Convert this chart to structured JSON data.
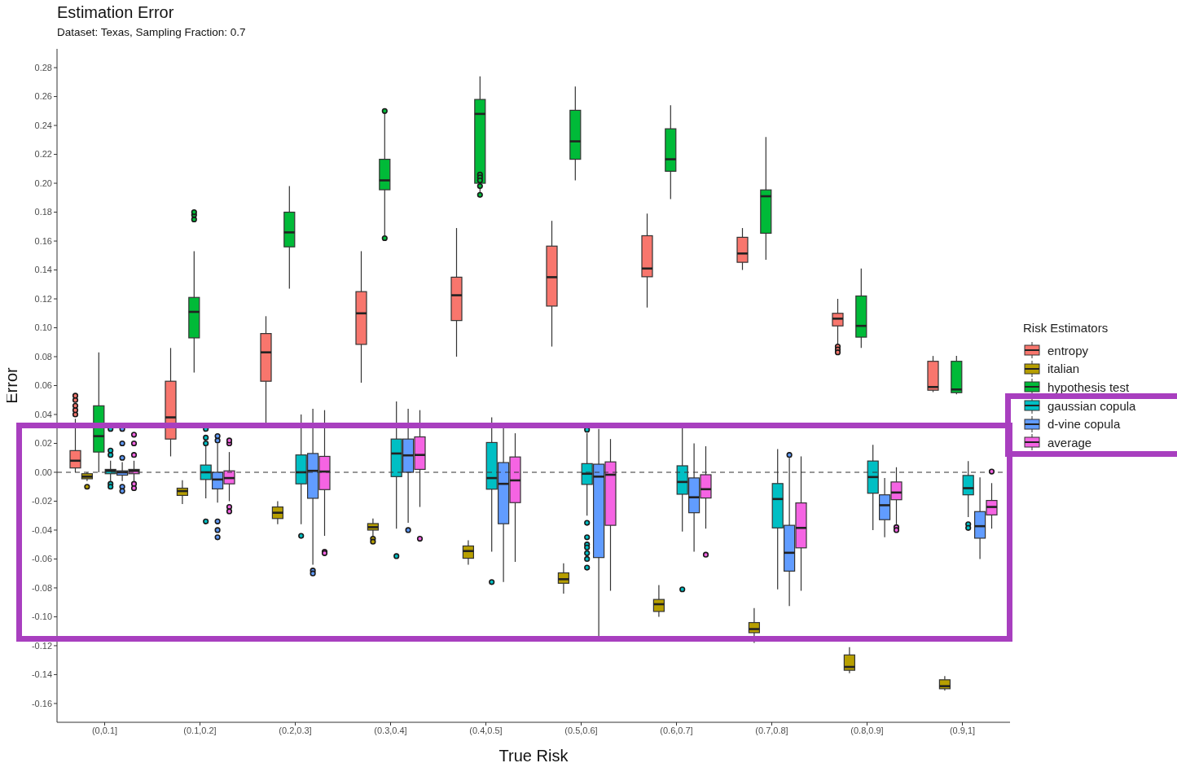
{
  "chart_data": {
    "type": "box",
    "title": "Estimation Error",
    "subtitle": "Dataset: Texas, Sampling Fraction: 0.7",
    "xlabel": "True Risk",
    "ylabel": "Error",
    "legend_title": "Risk Estimators",
    "legend": "right",
    "categories": [
      "(0,0.1]",
      "(0.1,0.2]",
      "(0.2,0.3]",
      "(0.3,0.4]",
      "(0.4,0.5]",
      "(0.5,0.6]",
      "(0.6,0.7]",
      "(0.7,0.8]",
      "(0.8,0.9]",
      "(0.9,1]"
    ],
    "ylim": [
      -0.173,
      0.293
    ],
    "yticks": [
      {
        "value": -0.16,
        "label": "-0.16"
      },
      {
        "value": -0.14,
        "label": "-0.14"
      },
      {
        "value": -0.12,
        "label": "-0.12"
      },
      {
        "value": -0.1,
        "label": "-0.10"
      },
      {
        "value": -0.08,
        "label": "-0.08"
      },
      {
        "value": -0.06,
        "label": "-0.06"
      },
      {
        "value": -0.04,
        "label": "-0.04"
      },
      {
        "value": -0.02,
        "label": "-0.02"
      },
      {
        "value": 0,
        "label": "0.00"
      },
      {
        "value": 0.02,
        "label": "0.02"
      },
      {
        "value": 0.04,
        "label": "0.04"
      },
      {
        "value": 0.06,
        "label": "0.06"
      },
      {
        "value": 0.08,
        "label": "0.08"
      },
      {
        "value": 0.1,
        "label": "0.10"
      },
      {
        "value": 0.12,
        "label": "0.12"
      },
      {
        "value": 0.14,
        "label": "0.14"
      },
      {
        "value": 0.16,
        "label": "0.16"
      },
      {
        "value": 0.18,
        "label": "0.18"
      },
      {
        "value": 0.2,
        "label": "0.20"
      },
      {
        "value": 0.22,
        "label": "0.22"
      },
      {
        "value": 0.24,
        "label": "0.24"
      },
      {
        "value": 0.26,
        "label": "0.26"
      },
      {
        "value": 0.28,
        "label": "0.28"
      }
    ],
    "ref_lines": [
      {
        "axis": "y",
        "value": 0,
        "line_style": "dashed"
      }
    ],
    "series": [
      {
        "name": "entropy",
        "color": "#f8766d",
        "boxes": [
          {
            "low": 0,
            "q1": 0.003,
            "median": 0.008,
            "q3": 0.015,
            "high": 0.037,
            "outliers": [
              0.04,
              0.043,
              0.046,
              0.05,
              0.053
            ]
          },
          {
            "low": 0.011,
            "q1": 0.023,
            "median": 0.038,
            "q3": 0.063,
            "high": 0.086
          },
          {
            "low": 0.031,
            "q1": 0.063,
            "median": 0.083,
            "q3": 0.096,
            "high": 0.108
          },
          {
            "low": 0.062,
            "q1": 0.0885,
            "median": 0.11,
            "q3": 0.125,
            "high": 0.153
          },
          {
            "low": 0.08,
            "q1": 0.105,
            "median": 0.1225,
            "q3": 0.135,
            "high": 0.169
          },
          {
            "low": 0.087,
            "q1": 0.115,
            "median": 0.135,
            "q3": 0.1565,
            "high": 0.174
          },
          {
            "low": 0.114,
            "q1": 0.1353,
            "median": 0.141,
            "q3": 0.1637,
            "high": 0.179
          },
          {
            "low": 0.14,
            "q1": 0.1453,
            "median": 0.1514,
            "q3": 0.1626,
            "high": 0.169
          },
          {
            "low": 0.0886,
            "q1": 0.1013,
            "median": 0.1063,
            "q3": 0.11,
            "high": 0.12,
            "outliers": [
              0.087,
              0.085,
              0.083
            ]
          },
          {
            "low": 0.0555,
            "q1": 0.0568,
            "median": 0.059,
            "q3": 0.0768,
            "high": 0.0805
          }
        ]
      },
      {
        "name": "italian",
        "color": "#b79f00",
        "boxes": [
          {
            "low": -0.006,
            "q1": -0.0045,
            "median": -0.003,
            "q3": -0.001,
            "high": 0,
            "outliers": [
              -0.01
            ]
          },
          {
            "low": -0.022,
            "q1": -0.016,
            "median": -0.013,
            "q3": -0.011,
            "high": -0.0055
          },
          {
            "low": -0.036,
            "q1": -0.032,
            "median": -0.028,
            "q3": -0.024,
            "high": -0.02
          },
          {
            "low": -0.045,
            "q1": -0.04,
            "median": -0.038,
            "q3": -0.0355,
            "high": -0.032,
            "outliers": [
              -0.046,
              -0.048
            ]
          },
          {
            "low": -0.064,
            "q1": -0.0595,
            "median": -0.0545,
            "q3": -0.051,
            "high": -0.047
          },
          {
            "low": -0.084,
            "q1": -0.0768,
            "median": -0.074,
            "q3": -0.0696,
            "high": -0.063
          },
          {
            "low": -0.1,
            "q1": -0.0963,
            "median": -0.0913,
            "q3": -0.088,
            "high": -0.078
          },
          {
            "low": -0.118,
            "q1": -0.111,
            "median": -0.1085,
            "q3": -0.104,
            "high": -0.094
          },
          {
            "low": -0.139,
            "q1": -0.137,
            "median": -0.1347,
            "q3": -0.1264,
            "high": -0.121
          },
          {
            "low": -0.151,
            "q1": -0.1498,
            "median": -0.148,
            "q3": -0.1436,
            "high": -0.141
          }
        ]
      },
      {
        "name": "hypothesis test",
        "color": "#00ba38",
        "boxes": [
          {
            "low": 0,
            "q1": 0.014,
            "median": 0.025,
            "q3": 0.046,
            "high": 0.083
          },
          {
            "low": 0.069,
            "q1": 0.093,
            "median": 0.111,
            "q3": 0.121,
            "high": 0.153,
            "outliers": [
              0.175,
              0.178,
              0.18
            ]
          },
          {
            "low": 0.127,
            "q1": 0.156,
            "median": 0.166,
            "q3": 0.18,
            "high": 0.198
          },
          {
            "low": 0.164,
            "q1": 0.1955,
            "median": 0.202,
            "q3": 0.2166,
            "high": 0.248,
            "outliers": [
              0.25,
              0.162
            ]
          },
          {
            "low": 0.19,
            "q1": 0.2,
            "median": 0.248,
            "q3": 0.258,
            "high": 0.274,
            "outliers": [
              0.206,
              0.204,
              0.202,
              0.198,
              0.192
            ]
          },
          {
            "low": 0.202,
            "q1": 0.2166,
            "median": 0.229,
            "q3": 0.2505,
            "high": 0.267
          },
          {
            "low": 0.189,
            "q1": 0.2083,
            "median": 0.2166,
            "q3": 0.2377,
            "high": 0.254
          },
          {
            "low": 0.147,
            "q1": 0.1654,
            "median": 0.191,
            "q3": 0.1954,
            "high": 0.232
          },
          {
            "low": 0.086,
            "q1": 0.0935,
            "median": 0.1013,
            "q3": 0.122,
            "high": 0.141
          },
          {
            "low": 0.054,
            "q1": 0.0551,
            "median": 0.0573,
            "q3": 0.0768,
            "high": 0.0805
          }
        ]
      },
      {
        "name": "gaussian copula",
        "color": "#00bfc4",
        "boxes": [
          {
            "low": -0.006,
            "q1": -0.001,
            "median": 0.001,
            "q3": 0.002,
            "high": 0.008,
            "outliers": [
              0.012,
              0.015,
              0.03,
              -0.008,
              -0.01
            ]
          },
          {
            "low": -0.018,
            "q1": -0.005,
            "median": 0,
            "q3": 0.005,
            "high": 0.018,
            "outliers": [
              0.02,
              0.024,
              0.03,
              -0.034
            ]
          },
          {
            "low": -0.036,
            "q1": -0.008,
            "median": 0,
            "q3": 0.012,
            "high": 0.04,
            "outliers": [
              -0.044
            ]
          },
          {
            "low": -0.039,
            "q1": -0.003,
            "median": 0.013,
            "q3": 0.023,
            "high": 0.049,
            "outliers": [
              -0.058
            ]
          },
          {
            "low": -0.055,
            "q1": -0.0117,
            "median": -0.004,
            "q3": 0.0206,
            "high": 0.038,
            "outliers": [
              -0.076
            ]
          },
          {
            "low": -0.03,
            "q1": -0.0084,
            "median": -0.001,
            "q3": 0.006,
            "high": 0.027,
            "outliers": [
              0.0295,
              -0.035,
              -0.045,
              -0.05,
              -0.052,
              -0.056,
              -0.06,
              -0.066
            ]
          },
          {
            "low": -0.041,
            "q1": -0.0152,
            "median": -0.0067,
            "q3": 0.0045,
            "high": 0.031,
            "outliers": [
              -0.081
            ]
          },
          {
            "low": -0.081,
            "q1": -0.0385,
            "median": -0.0185,
            "q3": -0.0078,
            "high": 0.016
          },
          {
            "low": -0.04,
            "q1": -0.0145,
            "median": -0.0033,
            "q3": 0.0078,
            "high": 0.019
          },
          {
            "low": -0.031,
            "q1": -0.0156,
            "median": -0.011,
            "q3": -0.0022,
            "high": 0.0078,
            "outliers": [
              -0.036,
              -0.0385
            ]
          }
        ]
      },
      {
        "name": "d-vine copula",
        "color": "#619cff",
        "boxes": [
          {
            "low": -0.006,
            "q1": -0.002,
            "median": 0,
            "q3": 0.001,
            "high": 0.007,
            "outliers": [
              0.01,
              0.02,
              0.03,
              -0.01,
              -0.013
            ]
          },
          {
            "low": -0.021,
            "q1": -0.0115,
            "median": -0.005,
            "q3": 0,
            "high": 0.02,
            "outliers": [
              0.022,
              0.025,
              -0.034,
              -0.04,
              -0.045
            ]
          },
          {
            "low": -0.064,
            "q1": -0.018,
            "median": 0.001,
            "q3": 0.013,
            "high": 0.044,
            "outliers": [
              -0.068,
              -0.07
            ]
          },
          {
            "low": -0.035,
            "q1": 0,
            "median": 0.0117,
            "q3": 0.023,
            "high": 0.044,
            "outliers": [
              -0.04
            ]
          },
          {
            "low": -0.076,
            "q1": -0.0356,
            "median": -0.008,
            "q3": 0.0067,
            "high": 0.031
          },
          {
            "low": -0.1147,
            "q1": -0.059,
            "median": -0.003,
            "q3": 0.0056,
            "high": 0.03
          },
          {
            "low": -0.055,
            "q1": -0.028,
            "median": -0.0173,
            "q3": -0.0039,
            "high": 0.02
          },
          {
            "low": -0.0925,
            "q1": -0.0684,
            "median": -0.0557,
            "q3": -0.0367,
            "high": 0.01,
            "outliers": [
              0.012
            ]
          },
          {
            "low": -0.045,
            "q1": -0.0328,
            "median": -0.0228,
            "q3": -0.0156,
            "high": -0.004
          },
          {
            "low": -0.06,
            "q1": -0.0456,
            "median": -0.0373,
            "q3": -0.0272,
            "high": -0.0035
          }
        ]
      },
      {
        "name": "average",
        "color": "#f564e3",
        "boxes": [
          {
            "low": -0.006,
            "q1": -0.001,
            "median": 0.001,
            "q3": 0.002,
            "high": 0.008,
            "outliers": [
              0.012,
              0.02,
              0.026,
              -0.008,
              -0.011
            ]
          },
          {
            "low": -0.02,
            "q1": -0.008,
            "median": -0.004,
            "q3": 0.001,
            "high": 0.014,
            "outliers": [
              0.02,
              0.022,
              -0.024,
              -0.027
            ]
          },
          {
            "low": -0.044,
            "q1": -0.012,
            "median": 0.0005,
            "q3": 0.011,
            "high": 0.043,
            "outliers": [
              -0.055,
              -0.056
            ]
          },
          {
            "low": -0.024,
            "q1": 0.002,
            "median": 0.012,
            "q3": 0.0245,
            "high": 0.043,
            "outliers": [
              -0.046
            ]
          },
          {
            "low": -0.062,
            "q1": -0.021,
            "median": -0.0056,
            "q3": 0.0106,
            "high": 0.027
          },
          {
            "low": -0.082,
            "q1": -0.0367,
            "median": -0.0017,
            "q3": 0.0072,
            "high": 0.023
          },
          {
            "low": -0.039,
            "q1": -0.0178,
            "median": -0.0117,
            "q3": -0.0017,
            "high": 0.018,
            "outliers": [
              -0.057
            ]
          },
          {
            "low": -0.082,
            "q1": -0.0523,
            "median": -0.0385,
            "q3": -0.0212,
            "high": 0.011
          },
          {
            "low": -0.036,
            "q1": -0.019,
            "median": -0.014,
            "q3": -0.0067,
            "high": 0.0035,
            "outliers": [
              -0.038,
              -0.04
            ]
          },
          {
            "low": -0.039,
            "q1": -0.0295,
            "median": -0.024,
            "q3": -0.0195,
            "high": -0.0075,
            "outliers": [
              0.0005
            ]
          }
        ]
      }
    ]
  }
}
